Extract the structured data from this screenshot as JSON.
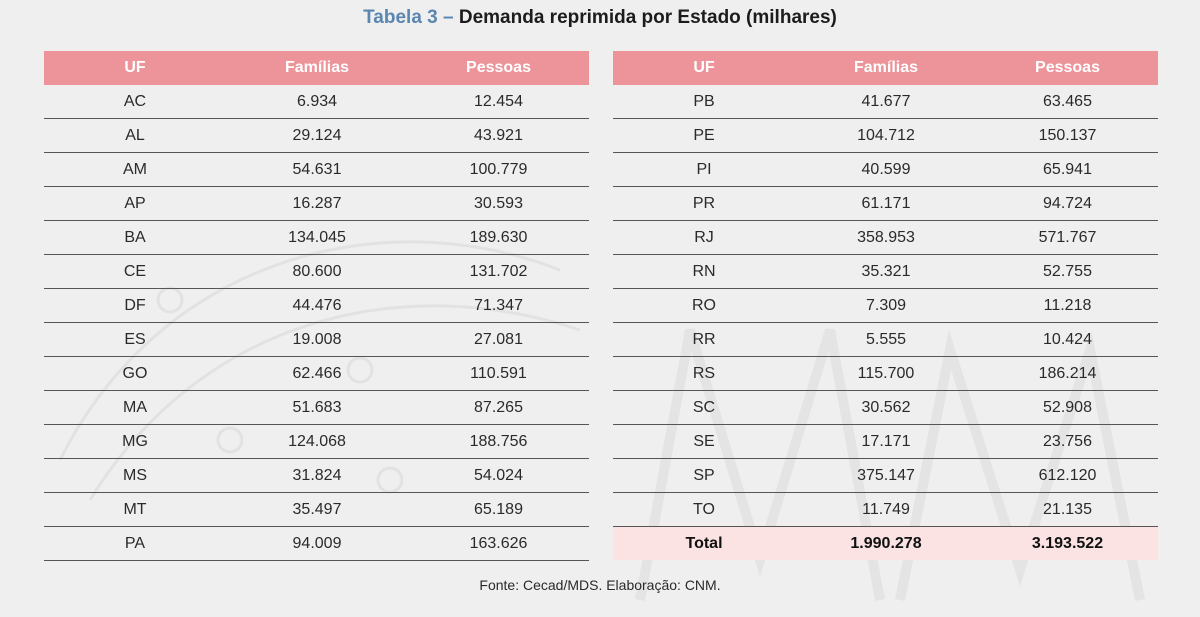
{
  "title": {
    "lead": "Tabela 3 –",
    "text": "Demanda reprimida por Estado (milhares)"
  },
  "headers": [
    "UF",
    "Famílias",
    "Pessoas"
  ],
  "left_rows": [
    [
      "AC",
      "6.934",
      "12.454"
    ],
    [
      "AL",
      "29.124",
      "43.921"
    ],
    [
      "AM",
      "54.631",
      "100.779"
    ],
    [
      "AP",
      "16.287",
      "30.593"
    ],
    [
      "BA",
      "134.045",
      "189.630"
    ],
    [
      "CE",
      "80.600",
      "131.702"
    ],
    [
      "DF",
      "44.476",
      "71.347"
    ],
    [
      "ES",
      "19.008",
      "27.081"
    ],
    [
      "GO",
      "62.466",
      "110.591"
    ],
    [
      "MA",
      "51.683",
      "87.265"
    ],
    [
      "MG",
      "124.068",
      "188.756"
    ],
    [
      "MS",
      "31.824",
      "54.024"
    ],
    [
      "MT",
      "35.497",
      "65.189"
    ],
    [
      "PA",
      "94.009",
      "163.626"
    ]
  ],
  "right_rows": [
    [
      "PB",
      "41.677",
      "63.465"
    ],
    [
      "PE",
      "104.712",
      "150.137"
    ],
    [
      "PI",
      "40.599",
      "65.941"
    ],
    [
      "PR",
      "61.171",
      "94.724"
    ],
    [
      "RJ",
      "358.953",
      "571.767"
    ],
    [
      "RN",
      "35.321",
      "52.755"
    ],
    [
      "RO",
      "7.309",
      "11.218"
    ],
    [
      "RR",
      "5.555",
      "10.424"
    ],
    [
      "RS",
      "115.700",
      "186.214"
    ],
    [
      "SC",
      "30.562",
      "52.908"
    ],
    [
      "SE",
      "17.171",
      "23.756"
    ],
    [
      "SP",
      "375.147",
      "612.120"
    ],
    [
      "TO",
      "11.749",
      "21.135"
    ]
  ],
  "total": [
    "Total",
    "1.990.278",
    "3.193.522"
  ],
  "source": "Fonte: Cecad/MDS. Elaboração: CNM.",
  "colors": {
    "header_bg": "#ec949a",
    "total_bg": "#fbe3e4",
    "title_lead": "#5b86b0"
  }
}
